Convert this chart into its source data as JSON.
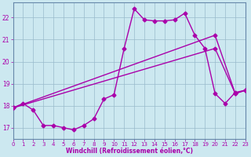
{
  "xlabel": "Windchill (Refroidissement éolien,°C)",
  "xlim": [
    0,
    23
  ],
  "ylim": [
    16.5,
    22.7
  ],
  "yticks": [
    17,
    18,
    19,
    20,
    21,
    22
  ],
  "xticks": [
    0,
    1,
    2,
    3,
    4,
    5,
    6,
    7,
    8,
    9,
    10,
    11,
    12,
    13,
    14,
    15,
    16,
    17,
    18,
    19,
    20,
    21,
    22,
    23
  ],
  "bg_color": "#cce8f0",
  "line_color": "#aa00aa",
  "grid_color": "#99bbcc",
  "line1_x": [
    0,
    1,
    2,
    3,
    4,
    5,
    6,
    7,
    8,
    9,
    10,
    11,
    12,
    13,
    14,
    15,
    16,
    17,
    18,
    19,
    20,
    21,
    22,
    23
  ],
  "line1_y": [
    17.9,
    18.1,
    17.8,
    17.1,
    17.1,
    17.0,
    16.9,
    17.1,
    17.4,
    18.3,
    18.5,
    20.6,
    22.4,
    21.9,
    21.85,
    21.85,
    21.9,
    22.2,
    21.2,
    20.6,
    18.55,
    18.1,
    18.6,
    18.7
  ],
  "line2_x": [
    0,
    20,
    22,
    23
  ],
  "line2_y": [
    17.9,
    21.2,
    18.55,
    18.7
  ],
  "line3_x": [
    0,
    20,
    22,
    23
  ],
  "line3_y": [
    17.9,
    20.6,
    18.55,
    18.7
  ],
  "marker": "D",
  "markersize": 2.5,
  "linewidth": 1.0
}
